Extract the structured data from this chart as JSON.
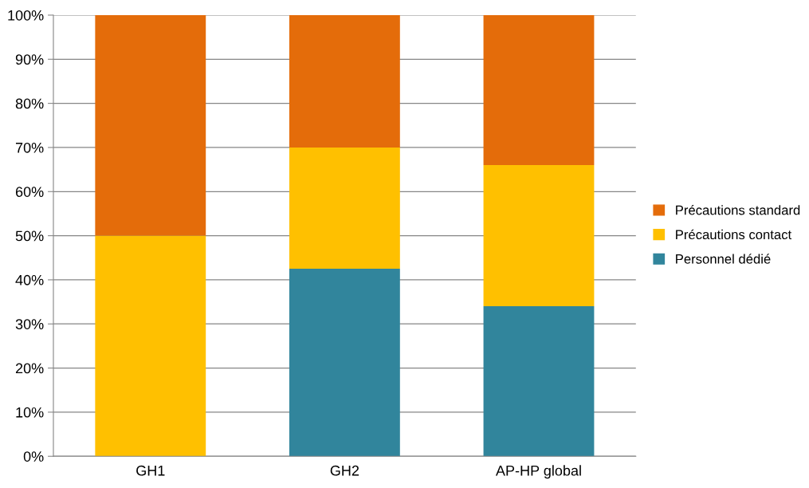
{
  "chart_data": {
    "type": "bar",
    "stacked": true,
    "categories": [
      "GH1",
      "GH2",
      "AP-HP global"
    ],
    "series": [
      {
        "name": "Personnel dédié",
        "color": "#31859c",
        "values": [
          0,
          42.5,
          34
        ]
      },
      {
        "name": "Précautions contact",
        "color": "#ffc000",
        "values": [
          50,
          27.5,
          32
        ]
      },
      {
        "name": "Précautions standard",
        "color": "#e46c0a",
        "values": [
          50,
          30,
          34
        ]
      }
    ],
    "ylim": [
      0,
      100
    ],
    "yticks": [
      {
        "value": 0,
        "label": "0%"
      },
      {
        "value": 10,
        "label": "10%"
      },
      {
        "value": 20,
        "label": "20%"
      },
      {
        "value": 30,
        "label": "30%"
      },
      {
        "value": 40,
        "label": "40%"
      },
      {
        "value": 50,
        "label": "50%"
      },
      {
        "value": 60,
        "label": "60%"
      },
      {
        "value": 70,
        "label": "70%"
      },
      {
        "value": 80,
        "label": "80%"
      },
      {
        "value": 90,
        "label": "90%"
      },
      {
        "value": 100,
        "label": "100%"
      }
    ],
    "grid": "y",
    "legend": "right"
  }
}
